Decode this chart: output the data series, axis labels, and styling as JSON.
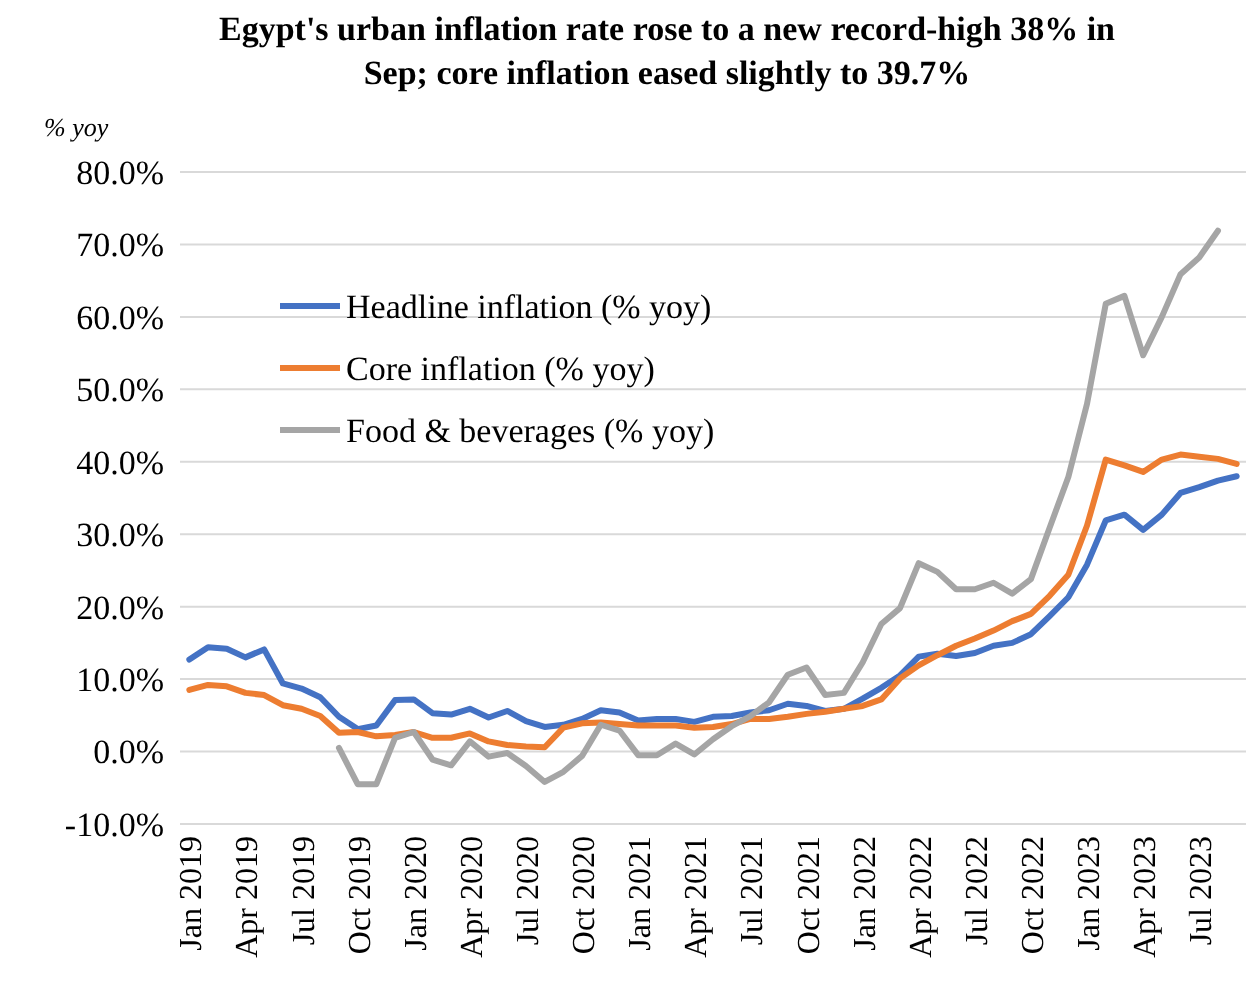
{
  "chart_data": {
    "type": "line",
    "title": "Egypt's urban inflation rate rose to a new record-high 38% in Sep; core inflation eased slightly to 39.7%",
    "ylabel": "% yoy",
    "categories": [
      "Jan 2019",
      null,
      null,
      "Apr 2019",
      null,
      null,
      "Jul 2019",
      null,
      null,
      "Oct 2019",
      null,
      null,
      "Jan 2020",
      null,
      null,
      "Apr 2020",
      null,
      null,
      "Jul 2020",
      null,
      null,
      "Oct 2020",
      null,
      null,
      "Jan 2021",
      null,
      null,
      "Apr 2021",
      null,
      null,
      "Jul 2021",
      null,
      null,
      "Oct 2021",
      null,
      null,
      "Jan 2022",
      null,
      null,
      "Apr 2022",
      null,
      null,
      "Jul 2022",
      null,
      null,
      "Oct 2022",
      null,
      null,
      "Jan 2023",
      null,
      null,
      "Apr 2023",
      null,
      null,
      "Jul 2023",
      null,
      null
    ],
    "series": [
      {
        "name": "Headline inflation (% yoy)",
        "color": "#4472c4",
        "values": [
          12.7,
          14.4,
          14.2,
          13.0,
          14.1,
          9.4,
          8.7,
          7.5,
          4.8,
          3.1,
          3.6,
          7.1,
          7.2,
          5.3,
          5.1,
          5.9,
          4.7,
          5.6,
          4.2,
          3.4,
          3.7,
          4.5,
          5.7,
          5.4,
          4.3,
          4.5,
          4.5,
          4.1,
          4.8,
          4.9,
          5.4,
          5.7,
          6.6,
          6.3,
          5.6,
          5.9,
          7.3,
          8.8,
          10.5,
          13.1,
          13.5,
          13.2,
          13.6,
          14.6,
          15.0,
          16.2,
          18.7,
          21.3,
          25.8,
          31.9,
          32.7,
          30.6,
          32.7,
          35.7,
          36.5,
          37.4,
          38.0
        ]
      },
      {
        "name": "Core inflation (% yoy)",
        "color": "#ed7d31",
        "values": [
          8.5,
          9.2,
          9.0,
          8.1,
          7.8,
          6.4,
          5.9,
          4.9,
          2.6,
          2.7,
          2.1,
          2.3,
          2.7,
          1.9,
          1.9,
          2.5,
          1.4,
          0.9,
          0.7,
          0.6,
          3.3,
          3.9,
          4.0,
          3.8,
          3.6,
          3.6,
          3.6,
          3.3,
          3.4,
          3.8,
          4.5,
          4.5,
          4.8,
          5.2,
          5.5,
          5.9,
          6.3,
          7.2,
          10.1,
          11.9,
          13.3,
          14.6,
          15.6,
          16.7,
          18.0,
          19.0,
          21.5,
          24.4,
          31.2,
          40.3,
          39.5,
          38.6,
          40.3,
          41.0,
          40.7,
          40.4,
          39.7
        ]
      },
      {
        "name": "Food & beverages (% yoy)",
        "color": "#a5a5a5",
        "values": [
          null,
          null,
          null,
          null,
          null,
          null,
          null,
          null,
          0.5,
          -4.5,
          -4.5,
          1.9,
          2.7,
          -1.1,
          -1.9,
          1.4,
          -0.7,
          -0.2,
          -2.0,
          -4.2,
          -2.8,
          -0.6,
          3.7,
          2.9,
          -0.5,
          -0.5,
          1.1,
          -0.4,
          1.7,
          3.5,
          4.9,
          6.8,
          10.6,
          11.6,
          7.8,
          8.1,
          12.3,
          17.6,
          19.8,
          26.0,
          24.8,
          22.4,
          22.4,
          23.3,
          21.8,
          23.8,
          30.9,
          37.9,
          48.0,
          61.8,
          62.9,
          54.7,
          60.0,
          65.9,
          68.2,
          71.9,
          null
        ]
      }
    ],
    "ylim": [
      -10,
      80
    ],
    "yticks": [
      {
        "value": -10,
        "label": "-10.0%"
      },
      {
        "value": 0,
        "label": "0.0%"
      },
      {
        "value": 10,
        "label": "10.0%"
      },
      {
        "value": 20,
        "label": "20.0%"
      },
      {
        "value": 30,
        "label": "30.0%"
      },
      {
        "value": 40,
        "label": "40.0%"
      },
      {
        "value": 50,
        "label": "50.0%"
      },
      {
        "value": 60,
        "label": "60.0%"
      },
      {
        "value": 70,
        "label": "70.0%"
      },
      {
        "value": 80,
        "label": "80.0%"
      }
    ],
    "grid": "y",
    "legend": "top left",
    "line_style": "solid",
    "marker": "none"
  }
}
